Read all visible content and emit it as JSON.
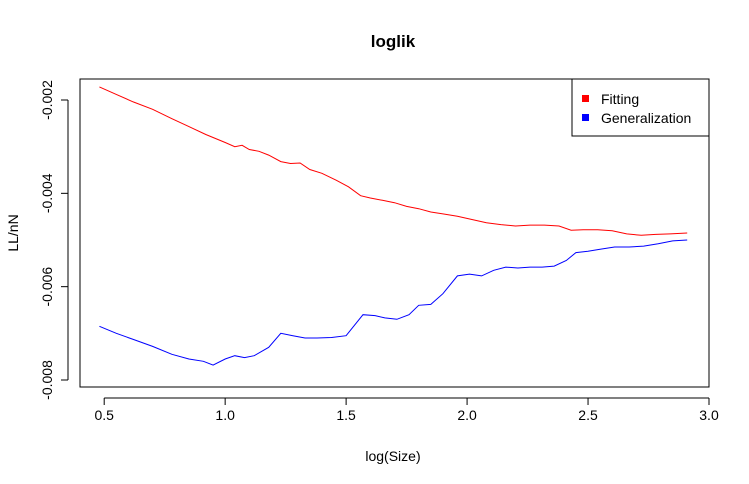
{
  "chart_data": {
    "type": "line",
    "title": "loglik",
    "xlabel": "log(Size)",
    "ylabel": "LL/nN",
    "xlim": [
      0.4,
      3.0
    ],
    "ylim": [
      -0.00815,
      -0.00155
    ],
    "x_ticks": [
      0.5,
      1.0,
      1.5,
      2.0,
      2.5,
      3.0
    ],
    "x_tick_labels": [
      "0.5",
      "1.0",
      "1.5",
      "2.0",
      "2.5",
      "3.0"
    ],
    "y_ticks": [
      -0.002,
      -0.004,
      -0.006,
      -0.008
    ],
    "y_tick_labels": [
      "-0.002",
      "-0.004",
      "-0.006",
      "-0.008"
    ],
    "legend_position": "top-right",
    "series": [
      {
        "name": "Fitting",
        "color": "#ff0000",
        "x": [
          0.48,
          0.55,
          0.62,
          0.7,
          0.78,
          0.85,
          0.92,
          1.0,
          1.04,
          1.07,
          1.1,
          1.14,
          1.18,
          1.23,
          1.27,
          1.31,
          1.35,
          1.4,
          1.46,
          1.51,
          1.56,
          1.6,
          1.65,
          1.7,
          1.75,
          1.8,
          1.85,
          1.9,
          1.96,
          2.02,
          2.08,
          2.14,
          2.2,
          2.26,
          2.32,
          2.38,
          2.43,
          2.48,
          2.54,
          2.6,
          2.66,
          2.72,
          2.78,
          2.84,
          2.91
        ],
        "y": [
          -0.00172,
          -0.00188,
          -0.00204,
          -0.0022,
          -0.0024,
          -0.00257,
          -0.00274,
          -0.00291,
          -0.003,
          -0.00297,
          -0.00306,
          -0.0031,
          -0.00318,
          -0.00332,
          -0.00336,
          -0.00335,
          -0.00349,
          -0.00357,
          -0.00372,
          -0.00386,
          -0.00405,
          -0.0041,
          -0.00415,
          -0.0042,
          -0.00428,
          -0.00433,
          -0.0044,
          -0.00444,
          -0.00449,
          -0.00456,
          -0.00463,
          -0.00467,
          -0.0047,
          -0.00468,
          -0.00468,
          -0.0047,
          -0.00479,
          -0.00478,
          -0.00478,
          -0.0048,
          -0.00487,
          -0.0049,
          -0.00488,
          -0.00487,
          -0.00485
        ]
      },
      {
        "name": "Generalization",
        "color": "#0000ff",
        "x": [
          0.48,
          0.55,
          0.62,
          0.7,
          0.78,
          0.85,
          0.91,
          0.95,
          1.0,
          1.04,
          1.08,
          1.12,
          1.18,
          1.23,
          1.28,
          1.33,
          1.38,
          1.44,
          1.5,
          1.57,
          1.62,
          1.66,
          1.71,
          1.76,
          1.8,
          1.85,
          1.9,
          1.96,
          2.01,
          2.06,
          2.11,
          2.16,
          2.21,
          2.26,
          2.31,
          2.36,
          2.41,
          2.45,
          2.5,
          2.55,
          2.61,
          2.67,
          2.73,
          2.79,
          2.85,
          2.91
        ],
        "y": [
          -0.00685,
          -0.007,
          -0.00713,
          -0.00728,
          -0.00745,
          -0.00755,
          -0.0076,
          -0.00768,
          -0.00755,
          -0.00748,
          -0.00752,
          -0.00748,
          -0.0073,
          -0.007,
          -0.00705,
          -0.0071,
          -0.0071,
          -0.00709,
          -0.00705,
          -0.0066,
          -0.00662,
          -0.00667,
          -0.0067,
          -0.0066,
          -0.0064,
          -0.00638,
          -0.00615,
          -0.00577,
          -0.00573,
          -0.00577,
          -0.00565,
          -0.00558,
          -0.0056,
          -0.00558,
          -0.00558,
          -0.00556,
          -0.00544,
          -0.00527,
          -0.00524,
          -0.0052,
          -0.00515,
          -0.00515,
          -0.00513,
          -0.00508,
          -0.00502,
          -0.005
        ]
      }
    ]
  }
}
